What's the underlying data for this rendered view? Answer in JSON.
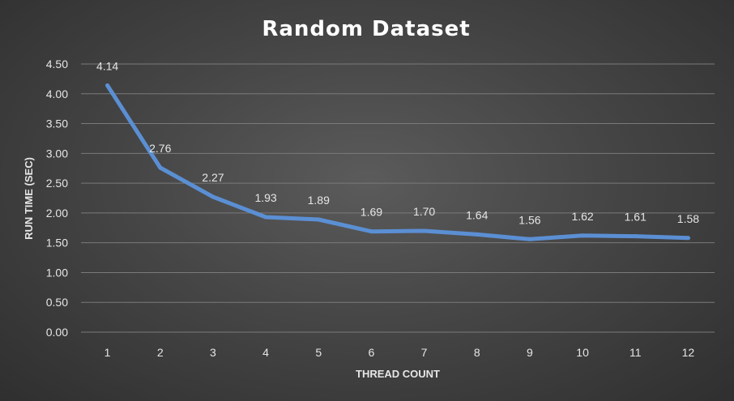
{
  "chart_data": {
    "type": "line",
    "title": "Random Dataset",
    "xlabel": "THREAD COUNT",
    "ylabel": "RUN TIME (SEC)",
    "categories": [
      "1",
      "2",
      "3",
      "4",
      "5",
      "6",
      "7",
      "8",
      "9",
      "10",
      "11",
      "12"
    ],
    "series": [
      {
        "values": [
          4.14,
          2.76,
          2.27,
          1.93,
          1.89,
          1.69,
          1.7,
          1.64,
          1.56,
          1.62,
          1.61,
          1.58
        ],
        "data_labels": [
          "4.14",
          "2.76",
          "2.27",
          "1.93",
          "1.89",
          "1.69",
          "1.70",
          "1.64",
          "1.56",
          "1.62",
          "1.61",
          "1.58"
        ],
        "color": "#5b8fd4"
      }
    ],
    "ylim": [
      0,
      4.5
    ],
    "y_ticks": [
      "0.00",
      "0.50",
      "1.00",
      "1.50",
      "2.00",
      "2.50",
      "3.00",
      "3.50",
      "4.00",
      "4.50"
    ],
    "grid": true,
    "legend": "none"
  }
}
